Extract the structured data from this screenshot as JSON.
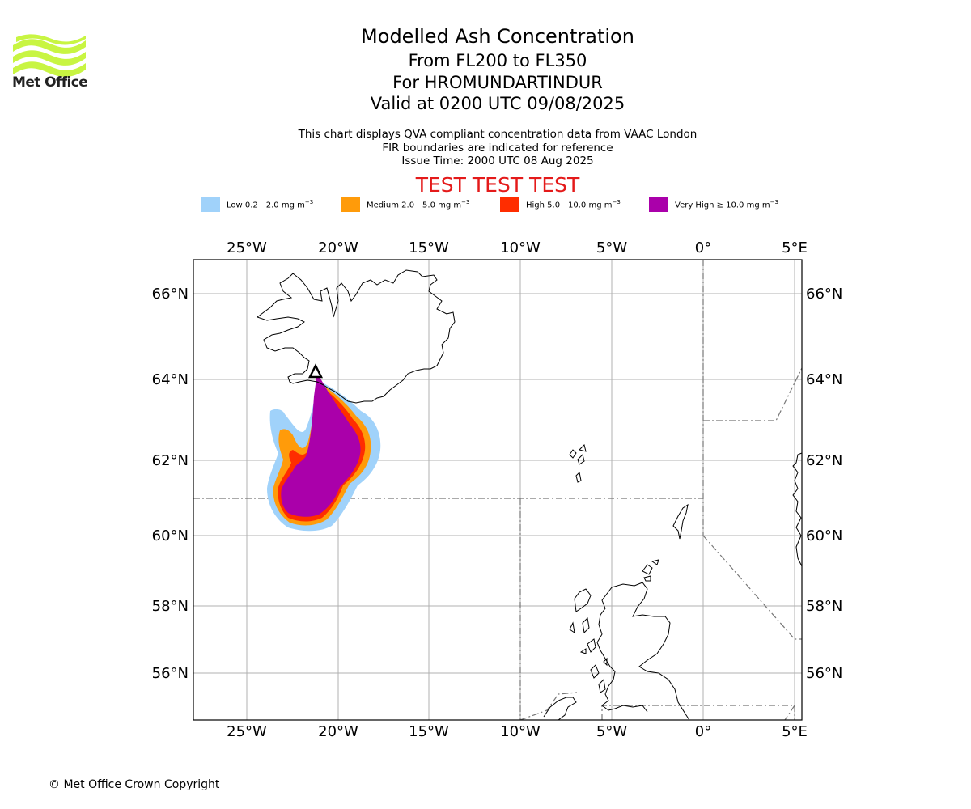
{
  "header": {
    "title": "Modelled Ash Concentration",
    "levels": "From FL200 to FL350",
    "volcano": "For HROMUNDARTINDUR",
    "valid": "Valid at 0200 UTC 09/08/2025",
    "line1": "This chart displays QVA compliant concentration data from VAAC London",
    "line2": "FIR boundaries are indicated for reference",
    "issue": "Issue Time: 2000 UTC 08 Aug 2025",
    "test_banner": "TEST TEST TEST"
  },
  "logo": {
    "text": "Met Office",
    "color": "#c8f542"
  },
  "legend": [
    {
      "label": "Low 0.2 - 2.0 mg m",
      "color": "#a0d2fa"
    },
    {
      "label": "Medium 2.0 - 5.0 mg m",
      "color": "#ff9b0a"
    },
    {
      "label": "High 5.0 - 10.0 mg m",
      "color": "#ff2d00"
    },
    {
      "label": "Very High  ≥  10.0 mg m",
      "color": "#aa00aa"
    }
  ],
  "legend_unit_exp": "−3",
  "map": {
    "lon_labels": [
      "25°W",
      "20°W",
      "15°W",
      "10°W",
      "5°W",
      "0°",
      "5°E"
    ],
    "lat_labels": [
      "66°N",
      "64°N",
      "62°N",
      "60°N",
      "58°N",
      "56°N"
    ],
    "volcano_marker": "triangle"
  },
  "footer": {
    "copyright": "© Met Office Crown Copyright"
  }
}
